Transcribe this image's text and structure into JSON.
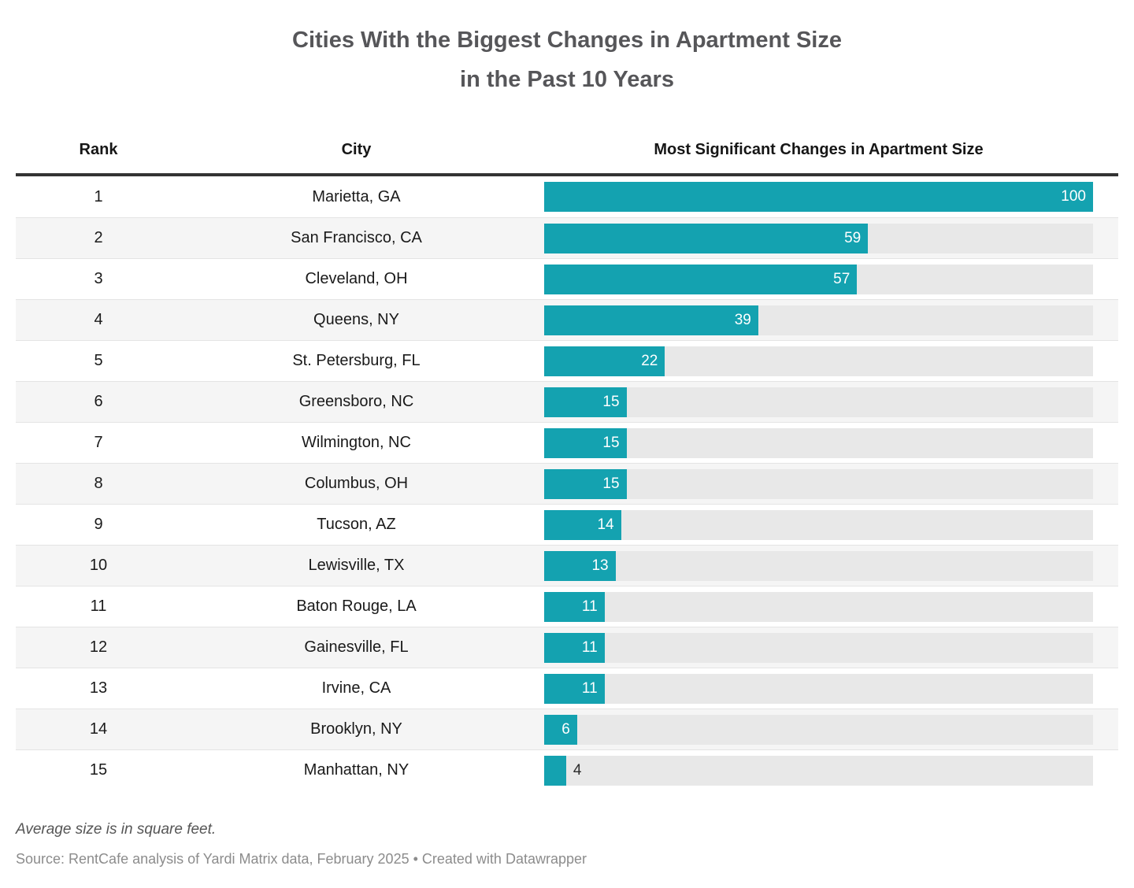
{
  "title": {
    "line1": "Cities With the Biggest Changes in Apartment Size",
    "line2": "in the Past 10 Years"
  },
  "columns": {
    "rank": "Rank",
    "city": "City",
    "bar": "Most Significant Changes in Apartment Size"
  },
  "rows": [
    {
      "rank": "1",
      "city": "Marietta, GA",
      "value": 100,
      "label": "100",
      "label_inside": true
    },
    {
      "rank": "2",
      "city": "San Francisco, CA",
      "value": 59,
      "label": "59",
      "label_inside": true
    },
    {
      "rank": "3",
      "city": "Cleveland, OH",
      "value": 57,
      "label": "57",
      "label_inside": true
    },
    {
      "rank": "4",
      "city": "Queens, NY",
      "value": 39,
      "label": "39",
      "label_inside": true
    },
    {
      "rank": "5",
      "city": "St. Petersburg, FL",
      "value": 22,
      "label": "22",
      "label_inside": true
    },
    {
      "rank": "6",
      "city": "Greensboro, NC",
      "value": 15,
      "label": "15",
      "label_inside": true
    },
    {
      "rank": "7",
      "city": "Wilmington, NC",
      "value": 15,
      "label": "15",
      "label_inside": true
    },
    {
      "rank": "8",
      "city": "Columbus, OH",
      "value": 15,
      "label": "15",
      "label_inside": true
    },
    {
      "rank": "9",
      "city": "Tucson, AZ",
      "value": 14,
      "label": "14",
      "label_inside": true
    },
    {
      "rank": "10",
      "city": "Lewisville, TX",
      "value": 13,
      "label": "13",
      "label_inside": true
    },
    {
      "rank": "11",
      "city": "Baton Rouge, LA",
      "value": 11,
      "label": "11",
      "label_inside": true
    },
    {
      "rank": "12",
      "city": "Gainesville, FL",
      "value": 11,
      "label": "11",
      "label_inside": true
    },
    {
      "rank": "13",
      "city": "Irvine, CA",
      "value": 11,
      "label": "11",
      "label_inside": true
    },
    {
      "rank": "14",
      "city": "Brooklyn, NY",
      "value": 6,
      "label": "6",
      "label_inside": true
    },
    {
      "rank": "15",
      "city": "Manhattan, NY",
      "value": 4,
      "label": "4",
      "label_inside": false
    }
  ],
  "footnote": "Average size is in square feet.",
  "source": "Source: RentCafe analysis of Yardi Matrix data, February 2025 • Created with Datawrapper",
  "colors": {
    "bar": "#14a2b0",
    "track": "#e8e8e8",
    "alt_row": "#f5f5f5",
    "header_rule": "#333333",
    "title_text": "#565659",
    "label_inside": "#ffffff",
    "label_outside": "#2b2b2b"
  },
  "chart_data": {
    "type": "bar",
    "orientation": "horizontal",
    "title": "Cities With the Biggest Changes in Apartment Size in the Past 10 Years",
    "categories": [
      "Marietta, GA",
      "San Francisco, CA",
      "Cleveland, OH",
      "Queens, NY",
      "St. Petersburg, FL",
      "Greensboro, NC",
      "Wilmington, NC",
      "Columbus, OH",
      "Tucson, AZ",
      "Lewisville, TX",
      "Baton Rouge, LA",
      "Gainesville, FL",
      "Irvine, CA",
      "Brooklyn, NY",
      "Manhattan, NY"
    ],
    "ranks": [
      1,
      2,
      3,
      4,
      5,
      6,
      7,
      8,
      9,
      10,
      11,
      12,
      13,
      14,
      15
    ],
    "values": [
      100,
      59,
      57,
      39,
      22,
      15,
      15,
      15,
      14,
      13,
      11,
      11,
      11,
      6,
      4
    ],
    "series_label": "Most Significant Changes in Apartment Size",
    "xlabel": "",
    "ylabel": "",
    "xlim": [
      0,
      100
    ],
    "grid": false,
    "legend": false,
    "note": "Average size is in square feet.",
    "source": "Source: RentCafe analysis of Yardi Matrix data, February 2025 • Created with Datawrapper"
  }
}
